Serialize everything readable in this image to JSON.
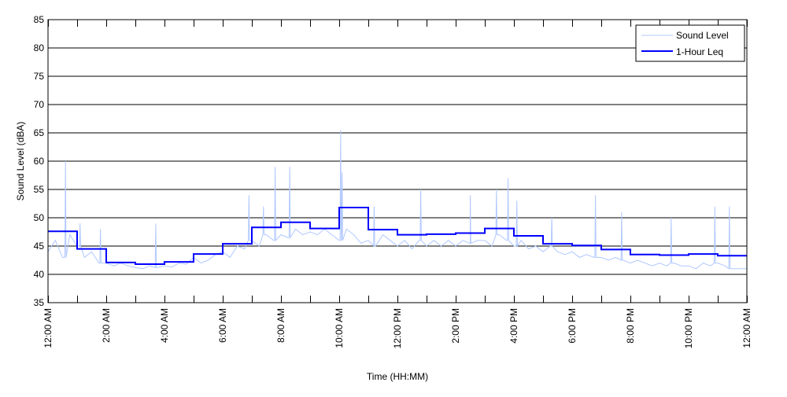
{
  "chart_data": {
    "type": "line",
    "title": "",
    "xlabel": "Time (HH:MM)",
    "ylabel": "Sound Level (dBA)",
    "xlim_hours": [
      0,
      24
    ],
    "ylim": [
      35,
      85
    ],
    "yticks": [
      35,
      40,
      45,
      50,
      55,
      60,
      65,
      70,
      75,
      80,
      85
    ],
    "xtick_labels": [
      "12:00 AM",
      "2:00 AM",
      "4:00 AM",
      "6:00 AM",
      "8:00 AM",
      "10:00 AM",
      "12:00 PM",
      "2:00 PM",
      "4:00 PM",
      "6:00 PM",
      "8:00 PM",
      "10:00 PM",
      "12:00 AM"
    ],
    "grid": "horizontal",
    "legend_position": "top-right",
    "series": [
      {
        "name": "Sound Level",
        "color": "#b0c8ff",
        "interval_minutes": 15,
        "values": [
          44,
          46,
          43,
          47,
          45,
          43,
          44,
          42,
          42,
          41.5,
          42,
          41.5,
          41.2,
          41,
          41.5,
          41.2,
          41.5,
          41.3,
          42,
          41.8,
          43,
          42,
          42.5,
          43.5,
          44,
          43,
          45,
          44.5,
          46,
          45,
          47,
          46,
          47,
          46.5,
          48,
          47,
          47.5,
          47,
          48,
          47,
          46,
          48,
          47,
          45.5,
          46,
          45,
          47,
          46,
          45,
          46,
          44.5,
          46,
          45,
          46,
          45,
          46,
          45,
          46,
          45.5,
          46,
          46,
          45,
          47,
          46,
          45,
          46,
          44.5,
          45,
          44,
          45,
          44,
          43.5,
          44,
          43,
          43.5,
          43,
          43,
          42.5,
          43,
          42.5,
          42,
          42.5,
          42,
          41.5,
          42,
          41.5,
          42,
          41.5,
          41.5,
          41,
          42,
          41.5,
          42,
          41.5,
          41,
          41,
          41
        ],
        "peaks": [
          [
            0.6,
            60
          ],
          [
            1.1,
            49
          ],
          [
            1.8,
            48
          ],
          [
            3.7,
            49
          ],
          [
            6.9,
            54
          ],
          [
            7.4,
            52
          ],
          [
            7.8,
            59
          ],
          [
            8.3,
            59
          ],
          [
            10.05,
            65.5
          ],
          [
            10.1,
            58
          ],
          [
            11.2,
            52
          ],
          [
            12.8,
            55
          ],
          [
            14.5,
            54
          ],
          [
            15.4,
            55
          ],
          [
            15.8,
            57
          ],
          [
            16.1,
            53
          ],
          [
            17.3,
            50
          ],
          [
            18.8,
            54
          ],
          [
            19.7,
            51
          ],
          [
            21.4,
            50
          ],
          [
            22.9,
            52
          ],
          [
            23.4,
            52
          ]
        ]
      },
      {
        "name": "1-Hour Leq",
        "color": "#0000ff",
        "interval_minutes": 60,
        "values": [
          47.6,
          44.5,
          42.1,
          41.8,
          42.2,
          43.6,
          45.4,
          48.3,
          49.2,
          48.1,
          51.8,
          47.9,
          47.0,
          47.1,
          47.3,
          48.1,
          46.8,
          45.4,
          45.1,
          44.4,
          43.5,
          43.4,
          43.6,
          43.3
        ]
      }
    ]
  }
}
